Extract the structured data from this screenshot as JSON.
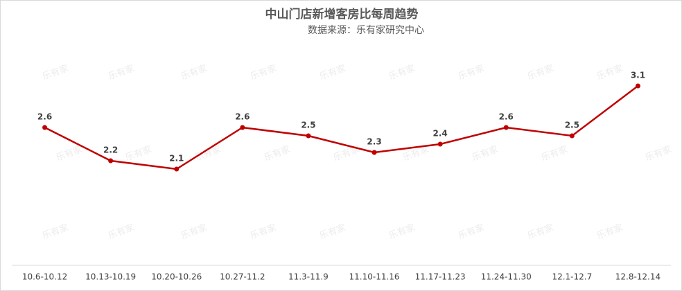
{
  "chart_data": {
    "type": "line",
    "title": "中山门店新增客房比每周趋势",
    "subtitle": "数据来源：乐有家研究中心",
    "watermark": "乐有家",
    "categories": [
      "10.6-10.12",
      "10.13-10.19",
      "10.20-10.26",
      "10.27-11.2",
      "11.3-11.9",
      "11.10-11.16",
      "11.17-11.23",
      "11.24-11.30",
      "12.1-12.7",
      "12.8-12.14"
    ],
    "series": [
      {
        "name": "新增客房比",
        "color": "#c00000",
        "values": [
          2.6,
          2.2,
          2.1,
          2.6,
          2.5,
          2.3,
          2.4,
          2.6,
          2.5,
          3.1
        ]
      }
    ]
  }
}
